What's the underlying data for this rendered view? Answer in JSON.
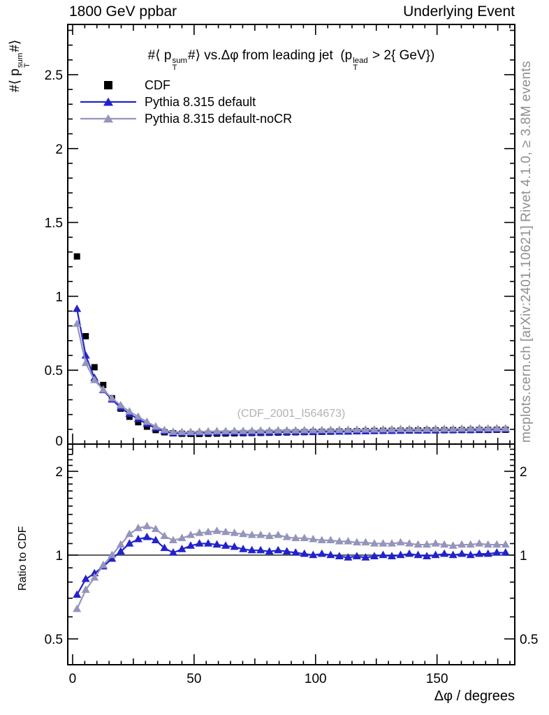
{
  "header": {
    "left": "1800 GeV ppbar",
    "right": "Underlying Event"
  },
  "main_title": {
    "p1": "#⟨ p",
    "sup1": "sum",
    "sub1": "T",
    "p2": "#⟩ vs.Δφ from leading jet  (p",
    "sup2": "lead",
    "sub2": "T",
    "p3": " > 2{ GeV})"
  },
  "ylabel": {
    "p1": "#⟨ p",
    "sup": "sum",
    "sub": "T",
    "p2": "#⟩"
  },
  "watermark": "(CDF_2001_I564673)",
  "side_notes": {
    "top_right": "Rivet 4.1.0, ≥ 3.8M events",
    "bottom_right": "mcplots.cern.ch [arXiv:2401.10621]"
  },
  "legend": {
    "items": [
      {
        "label": "CDF",
        "marker": "square",
        "color": "#000000"
      },
      {
        "label": "Pythia 8.315 default",
        "marker": "triangle-line",
        "color": "#2222cc"
      },
      {
        "label": "Pythia 8.315 default-noCR",
        "marker": "triangle-line",
        "color": "#9595bc"
      }
    ]
  },
  "axes": {
    "x": {
      "label": "Δφ / degrees",
      "ticks": [
        0,
        50,
        100,
        150
      ],
      "minor_step": 5,
      "range": [
        -2,
        182
      ]
    },
    "main_y": {
      "ticks": [
        0.5,
        1,
        1.5,
        2,
        2.5
      ],
      "zero_label": "0",
      "minor_step": 0.1,
      "range": [
        0,
        2.84
      ]
    },
    "ratio_y": {
      "label": "Ratio to CDF",
      "ticks": [
        0.5,
        1,
        2
      ],
      "minor_ticks": [
        0.6,
        0.7,
        0.8,
        0.9,
        1.1,
        1.2,
        1.3,
        1.4,
        1.5,
        1.6,
        1.7,
        1.8,
        1.9,
        2.1,
        2.2,
        2.3,
        2.4
      ],
      "range": [
        0.404,
        2.5
      ],
      "scale": "log2",
      "reference_line": 1
    }
  },
  "colors": {
    "frame": "#000000",
    "cdf": "#000000",
    "pythia_default": "#2222cc",
    "pythia_nocr": "#9595bc",
    "side_text": "#8f8f8f",
    "watermark": "#b2b2b2"
  },
  "chart_data": [
    {
      "type": "scatter",
      "title": "#⟨ pT^sum #⟩ vs.Δφ from leading jet (pT^lead > 2{ GeV})",
      "xlabel": "Δφ / degrees",
      "ylabel": "#⟨ pT^sum #⟩",
      "xlim": [
        -2,
        182
      ],
      "ylim": [
        0,
        2.84
      ],
      "grid": false,
      "legend_position": "top-left",
      "x": [
        1.8,
        5.4,
        9,
        12.6,
        16.2,
        19.8,
        23.4,
        27,
        30.6,
        34.2,
        37.8,
        41.4,
        45,
        48.6,
        52.2,
        55.8,
        59.4,
        63,
        66.6,
        70.2,
        73.8,
        77.4,
        81,
        84.6,
        88.2,
        91.8,
        95.4,
        99,
        102.6,
        106.2,
        109.8,
        113.4,
        117,
        120.6,
        124.2,
        127.8,
        131.4,
        135,
        138.6,
        142.2,
        145.8,
        149.4,
        153,
        156.6,
        160.2,
        163.8,
        167.4,
        171,
        174.6,
        178.2
      ],
      "series": [
        {
          "name": "CDF",
          "marker": "square",
          "line": false,
          "color": "#000000",
          "values": [
            1.27,
            0.73,
            0.52,
            0.4,
            0.31,
            0.24,
            0.185,
            0.148,
            0.118,
            0.095,
            0.08,
            0.073,
            0.07,
            0.069,
            0.069,
            0.07,
            0.071,
            0.072,
            0.073,
            0.074,
            0.075,
            0.076,
            0.077,
            0.078,
            0.079,
            0.08,
            0.081,
            0.082,
            0.083,
            0.084,
            0.085,
            0.086,
            0.087,
            0.088,
            0.089,
            0.09,
            0.09,
            0.091,
            0.092,
            0.092,
            0.093,
            0.093,
            0.094,
            0.094,
            0.095,
            0.095,
            0.096,
            0.096,
            0.097,
            0.097
          ]
        },
        {
          "name": "Pythia 8.315 default",
          "marker": "triangle",
          "line": true,
          "color": "#2222cc",
          "values": [
            0.914,
            0.599,
            0.447,
            0.364,
            0.301,
            0.247,
            0.204,
            0.169,
            0.137,
            0.107,
            0.085,
            0.074,
            0.074,
            0.075,
            0.076,
            0.077,
            0.077,
            0.078,
            0.078,
            0.078,
            0.078,
            0.079,
            0.079,
            0.081,
            0.081,
            0.082,
            0.082,
            0.082,
            0.084,
            0.084,
            0.084,
            0.084,
            0.086,
            0.086,
            0.088,
            0.09,
            0.089,
            0.091,
            0.093,
            0.092,
            0.092,
            0.093,
            0.095,
            0.094,
            0.096,
            0.095,
            0.097,
            0.097,
            0.099,
            0.099
          ]
        },
        {
          "name": "Pythia 8.315 default-noCR",
          "marker": "triangle",
          "line": true,
          "color": "#9595bc",
          "values": [
            0.813,
            0.548,
            0.432,
            0.368,
            0.31,
            0.262,
            0.22,
            0.185,
            0.15,
            0.118,
            0.094,
            0.082,
            0.081,
            0.081,
            0.083,
            0.085,
            0.087,
            0.087,
            0.088,
            0.088,
            0.089,
            0.09,
            0.09,
            0.092,
            0.092,
            0.092,
            0.093,
            0.093,
            0.094,
            0.095,
            0.095,
            0.096,
            0.097,
            0.098,
            0.098,
            0.099,
            0.099,
            0.101,
            0.101,
            0.1,
            0.101,
            0.102,
            0.102,
            0.102,
            0.104,
            0.104,
            0.106,
            0.105,
            0.106,
            0.106
          ]
        }
      ]
    },
    {
      "type": "line",
      "title": "Ratio to CDF",
      "yscale": "log2",
      "ylim": [
        0.404,
        2.5
      ],
      "yticks": [
        0.5,
        1,
        2
      ],
      "reference_line": 1,
      "x": [
        1.8,
        5.4,
        9,
        12.6,
        16.2,
        19.8,
        23.4,
        27,
        30.6,
        34.2,
        37.8,
        41.4,
        45,
        48.6,
        52.2,
        55.8,
        59.4,
        63,
        66.6,
        70.2,
        73.8,
        77.4,
        81,
        84.6,
        88.2,
        91.8,
        95.4,
        99,
        102.6,
        106.2,
        109.8,
        113.4,
        117,
        120.6,
        124.2,
        127.8,
        131.4,
        135,
        138.6,
        142.2,
        145.8,
        149.4,
        153,
        156.6,
        160.2,
        163.8,
        167.4,
        171,
        174.6,
        178.2
      ],
      "series": [
        {
          "name": "Pythia 8.315 default",
          "marker": "triangle",
          "line": true,
          "color": "#2222cc",
          "values": [
            0.72,
            0.82,
            0.86,
            0.91,
            0.97,
            1.03,
            1.1,
            1.14,
            1.16,
            1.13,
            1.06,
            1.02,
            1.05,
            1.08,
            1.1,
            1.1,
            1.09,
            1.08,
            1.07,
            1.05,
            1.04,
            1.04,
            1.03,
            1.04,
            1.03,
            1.02,
            1.01,
            1.0,
            1.01,
            1.0,
            0.99,
            0.98,
            0.99,
            0.98,
            0.99,
            1.0,
            0.99,
            1.0,
            1.01,
            1.0,
            0.99,
            1.0,
            1.01,
            1.0,
            1.01,
            1.0,
            1.01,
            1.01,
            1.02,
            1.02
          ]
        },
        {
          "name": "Pythia 8.315 default-noCR",
          "marker": "triangle",
          "line": true,
          "color": "#9595bc",
          "values": [
            0.64,
            0.75,
            0.83,
            0.92,
            1.0,
            1.09,
            1.19,
            1.25,
            1.27,
            1.24,
            1.17,
            1.13,
            1.15,
            1.18,
            1.2,
            1.21,
            1.22,
            1.21,
            1.2,
            1.19,
            1.18,
            1.18,
            1.17,
            1.18,
            1.16,
            1.15,
            1.15,
            1.14,
            1.13,
            1.13,
            1.12,
            1.12,
            1.11,
            1.11,
            1.1,
            1.1,
            1.1,
            1.11,
            1.1,
            1.09,
            1.09,
            1.1,
            1.09,
            1.08,
            1.09,
            1.09,
            1.1,
            1.09,
            1.09,
            1.09
          ]
        }
      ]
    }
  ]
}
